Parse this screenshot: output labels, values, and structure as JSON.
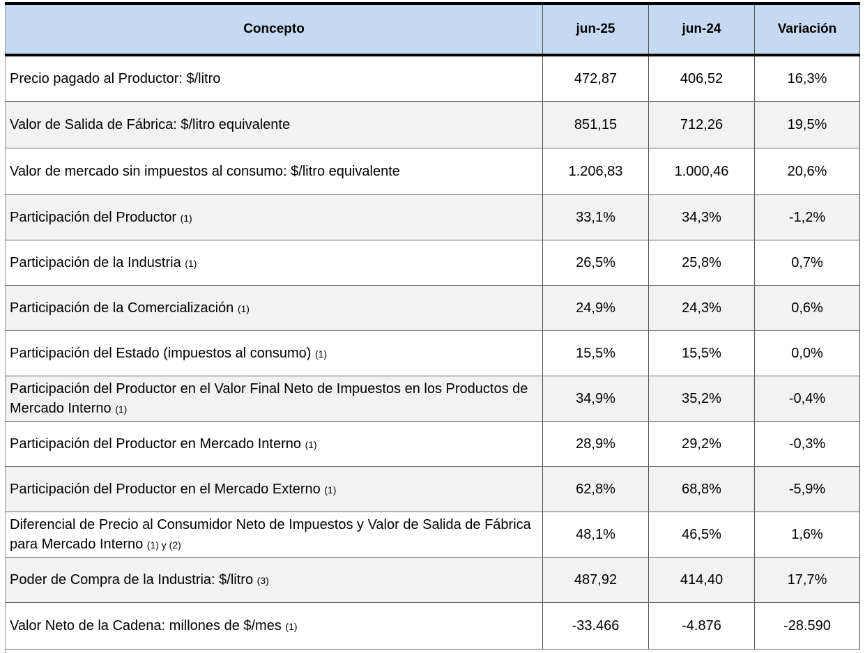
{
  "table": {
    "headers": [
      "Concepto",
      "jun-25",
      "jun-24",
      "Variación"
    ],
    "rows": [
      {
        "label": "Precio pagado al Productor: $/litro",
        "note": "",
        "jun25": "472,87",
        "jun24": "406,52",
        "variacion": "16,3%"
      },
      {
        "label": "Valor de Salida de Fábrica: $/litro equivalente",
        "note": "",
        "jun25": "851,15",
        "jun24": "712,26",
        "variacion": "19,5%"
      },
      {
        "label": "Valor de mercado sin impuestos al consumo: $/litro equivalente",
        "note": "",
        "jun25": "1.206,83",
        "jun24": "1.000,46",
        "variacion": "20,6%"
      },
      {
        "label": "Participación del Productor",
        "note": "(1)",
        "jun25": "33,1%",
        "jun24": "34,3%",
        "variacion": "-1,2%"
      },
      {
        "label": "Participación de la Industria",
        "note": "(1)",
        "jun25": "26,5%",
        "jun24": "25,8%",
        "variacion": "0,7%"
      },
      {
        "label": "Participación de la Comercialización",
        "note": "(1)",
        "jun25": "24,9%",
        "jun24": "24,3%",
        "variacion": "0,6%"
      },
      {
        "label": "Participación del Estado (impuestos al consumo)",
        "note": "(1)",
        "jun25": "15,5%",
        "jun24": "15,5%",
        "variacion": "0,0%"
      },
      {
        "label": "Participación del Productor en el Valor Final Neto de Impuestos en los Productos de Mercado Interno",
        "note": "(1)",
        "jun25": "34,9%",
        "jun24": "35,2%",
        "variacion": "-0,4%"
      },
      {
        "label": "Participación del Productor en Mercado Interno",
        "note": "(1)",
        "jun25": "28,9%",
        "jun24": "29,2%",
        "variacion": "-0,3%"
      },
      {
        "label": "Participación del Productor en el Mercado Externo",
        "note": "(1)",
        "jun25": "62,8%",
        "jun24": "68,8%",
        "variacion": "-5,9%"
      },
      {
        "label": "Diferencial de Precio al Consumidor Neto de Impuestos y Valor de Salida de Fábrica para Mercado Interno",
        "note": "(1) y (2)",
        "jun25": "48,1%",
        "jun24": "46,5%",
        "variacion": "1,6%"
      },
      {
        "label": "Poder de Compra de la Industria: $/litro",
        "note": "(3)",
        "jun25": "487,92",
        "jun24": "414,40",
        "variacion": "17,7%"
      },
      {
        "label": "Valor Neto de la Cadena: millones de $/mes",
        "note": "(1)",
        "jun25": "-33.466",
        "jun24": "-4.876",
        "variacion": "-28.590"
      }
    ]
  }
}
